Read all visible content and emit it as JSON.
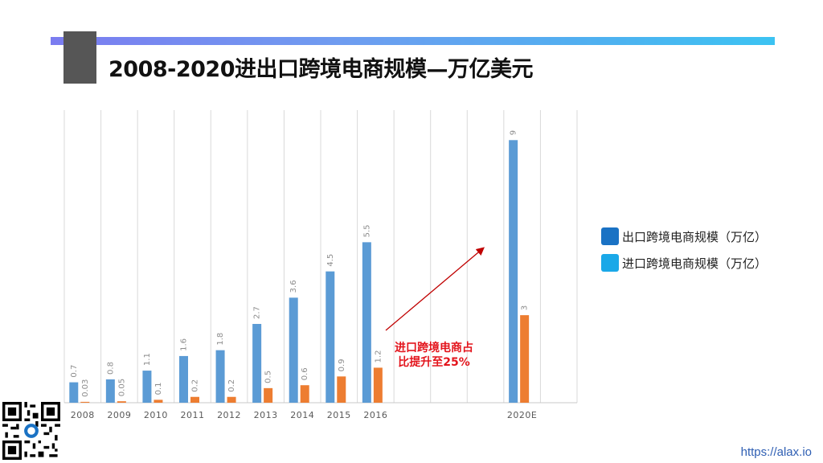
{
  "slide": {
    "title": "2008-2020进出口跨境电商规模—万亿美元",
    "annotation_line1": "进口跨境电商占",
    "annotation_line2": "比提升至25%",
    "url": "https://alax.io"
  },
  "legend": {
    "export_label": "出口跨境电商规模（万亿）",
    "import_label": "进口跨境电商规模（万亿）",
    "export_swatch": "#1a72c4",
    "import_swatch": "#1aa8e8"
  },
  "chart_data": {
    "type": "bar",
    "categories": [
      "2008",
      "2009",
      "2010",
      "2011",
      "2012",
      "2013",
      "2014",
      "2015",
      "2016",
      "",
      "",
      "",
      "2020E",
      ""
    ],
    "series": [
      {
        "name": "出口跨境电商规模（万亿）",
        "color": "#5b9bd5",
        "values": [
          0.7,
          0.8,
          1.1,
          1.6,
          1.8,
          2.7,
          3.6,
          4.5,
          5.5,
          null,
          null,
          null,
          9,
          null
        ],
        "labels": [
          "0.7",
          "0.8",
          "1.1",
          "1.6",
          "1.8",
          "2.7",
          "3.6",
          "4.5",
          "5.5",
          "",
          "",
          "",
          "9",
          ""
        ]
      },
      {
        "name": "进口跨境电商规模（万亿）",
        "color": "#ed7d31",
        "values": [
          0.03,
          0.05,
          0.1,
          0.2,
          0.2,
          0.5,
          0.6,
          0.9,
          1.2,
          null,
          null,
          null,
          3,
          null
        ],
        "labels": [
          "0.03",
          "0.05",
          "0.1",
          "0.2",
          "0.2",
          "0.5",
          "0.6",
          "0.9",
          "1.2",
          "",
          "",
          "",
          "3",
          ""
        ]
      }
    ],
    "ylim": [
      0,
      10
    ],
    "grid": "vertical",
    "legend_position": "right",
    "arrow_color": "#c00000"
  }
}
